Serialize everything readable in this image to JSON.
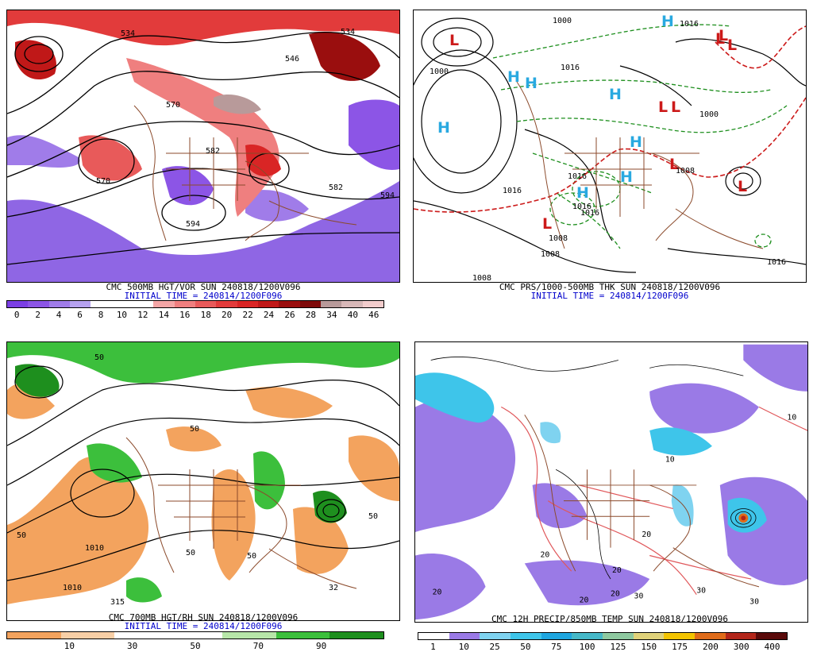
{
  "panels": {
    "tl": {
      "title": "CMC 500MB HGT/VOR SUN 240818/1200V096",
      "subtitle": "INITIAL TIME = 240814/1200F096",
      "colorbar": {
        "labels": [
          "0",
          "2",
          "4",
          "6",
          "8",
          "10",
          "12",
          "14",
          "16",
          "18",
          "20",
          "22",
          "24",
          "26",
          "28",
          "34",
          "40",
          "46"
        ],
        "colors": [
          "#7b3fe4",
          "#8c55e6",
          "#a07ce9",
          "#b6a2ef",
          "#ffffff",
          "#ffffff",
          "#ffffff",
          "#f4a6a6",
          "#ef7f7f",
          "#e85a5a",
          "#e23b3b",
          "#d92525",
          "#c01818",
          "#9a0e0e",
          "#7e0a0a",
          "#b89a9a",
          "#d8b8b8",
          "#f2cccc"
        ]
      },
      "contour_labels": [
        "534",
        "534",
        "546",
        "570",
        "582",
        "570",
        "582",
        "594",
        "594"
      ]
    },
    "tr": {
      "title": "CMC PRS/1000-500MB THK SUN 240818/1200V096",
      "subtitle": "INITIAL TIME = 240814/1200F096",
      "symbols": [
        "H",
        "L",
        "L",
        "H",
        "H",
        "H",
        "H",
        "H",
        "L",
        "L",
        "L",
        "H",
        "L",
        "L",
        "H",
        "L",
        "L"
      ],
      "isobar_labels": [
        "1000",
        "1016",
        "1016",
        "1016",
        "1016",
        "1000",
        "1016",
        "1008",
        "1008",
        "1016",
        "1008",
        "1016",
        "1008",
        "1000"
      ]
    },
    "bl": {
      "title": "CMC 700MB HGT/RH SUN 240818/1200V096",
      "subtitle": "INITIAL TIME = 240814/1200F096",
      "colorbar": {
        "labels": [
          "10",
          "30",
          "50",
          "70",
          "90"
        ],
        "colors": [
          "#f3a35e",
          "#f8cfa6",
          "#ffffff",
          "#ffffff",
          "#b7e6a8",
          "#3cbf3c",
          "#1e8f1e"
        ]
      },
      "contour_labels": [
        "1010",
        "1010",
        "315",
        "50",
        "50",
        "50",
        "50",
        "50",
        "32",
        "50"
      ]
    },
    "br": {
      "title": "CMC 12H PRECIP/850MB TEMP SUN 240818/1200V096",
      "colorbar": {
        "labels": [
          "1",
          "10",
          "25",
          "50",
          "75",
          "100",
          "125",
          "150",
          "175",
          "200",
          "300",
          "400"
        ],
        "colors": [
          "#ffffff",
          "#9a7ae6",
          "#7fd3f0",
          "#3ec5ea",
          "#1ea6e0",
          "#45b8c8",
          "#8ec9a0",
          "#e0d27a",
          "#f3c400",
          "#e06c1a",
          "#b3261a",
          "#5a0a0a"
        ]
      },
      "temp_labels": [
        "20",
        "20",
        "20",
        "30",
        "30",
        "20",
        "10",
        "10",
        "30",
        "20",
        "20"
      ]
    }
  }
}
